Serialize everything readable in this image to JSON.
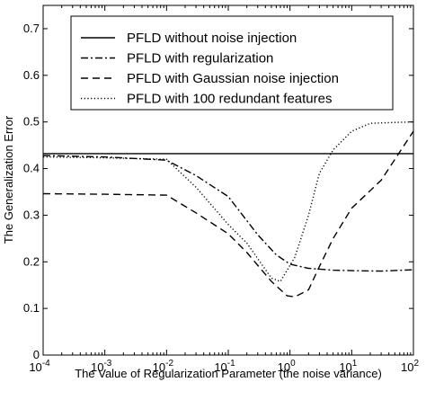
{
  "chart_data": {
    "type": "line",
    "xlabel": "The Value of Regularization Parameter (the noise variance)",
    "ylabel": "The Generalization Error",
    "xscale": "log",
    "xlim": [
      0.0001,
      100
    ],
    "ylim": [
      0,
      0.75
    ],
    "x_ticks": [
      {
        "value": 0.0001,
        "base": "10",
        "exp": "-4"
      },
      {
        "value": 0.001,
        "base": "10",
        "exp": "-3"
      },
      {
        "value": 0.01,
        "base": "10",
        "exp": "-2"
      },
      {
        "value": 0.1,
        "base": "10",
        "exp": "-1"
      },
      {
        "value": 1,
        "base": "10",
        "exp": "0"
      },
      {
        "value": 10,
        "base": "10",
        "exp": "1"
      },
      {
        "value": 100,
        "base": "10",
        "exp": "2"
      }
    ],
    "y_ticks": [
      {
        "value": 0,
        "label": "0"
      },
      {
        "value": 0.1,
        "label": "0.1"
      },
      {
        "value": 0.2,
        "label": "0.2"
      },
      {
        "value": 0.3,
        "label": "0.3"
      },
      {
        "value": 0.4,
        "label": "0.4"
      },
      {
        "value": 0.5,
        "label": "0.5"
      },
      {
        "value": 0.6,
        "label": "0.6"
      },
      {
        "value": 0.7,
        "label": "0.7"
      }
    ],
    "grid": false,
    "legend_position": "top-right",
    "series": [
      {
        "name": "PFLD without noise injection",
        "style": "solid",
        "x": [
          0.0001,
          100
        ],
        "y": [
          0.432,
          0.432
        ]
      },
      {
        "name": "PFLD with regularization",
        "style": "dashdot",
        "x": [
          0.0001,
          0.001,
          0.01,
          0.03,
          0.1,
          0.3,
          0.6,
          1,
          2,
          5,
          10,
          30,
          100
        ],
        "y": [
          0.428,
          0.425,
          0.418,
          0.385,
          0.34,
          0.258,
          0.215,
          0.195,
          0.186,
          0.182,
          0.181,
          0.18,
          0.183
        ]
      },
      {
        "name": "PFLD with Gaussian noise injection",
        "style": "dashed",
        "x": [
          0.0001,
          0.001,
          0.01,
          0.03,
          0.1,
          0.2,
          0.5,
          0.9,
          1.2,
          2,
          3,
          5,
          10,
          30,
          100
        ],
        "y": [
          0.346,
          0.345,
          0.343,
          0.305,
          0.26,
          0.22,
          0.158,
          0.127,
          0.125,
          0.14,
          0.19,
          0.25,
          0.315,
          0.375,
          0.48
        ]
      },
      {
        "name": "PFLD with 100 redundant features",
        "style": "dotted",
        "x": [
          0.0001,
          0.001,
          0.01,
          0.03,
          0.1,
          0.2,
          0.5,
          0.7,
          1.2,
          2,
          3,
          5,
          10,
          20,
          50,
          100
        ],
        "y": [
          0.425,
          0.423,
          0.42,
          0.36,
          0.28,
          0.24,
          0.165,
          0.158,
          0.21,
          0.3,
          0.39,
          0.44,
          0.48,
          0.497,
          0.499,
          0.5
        ]
      }
    ]
  }
}
